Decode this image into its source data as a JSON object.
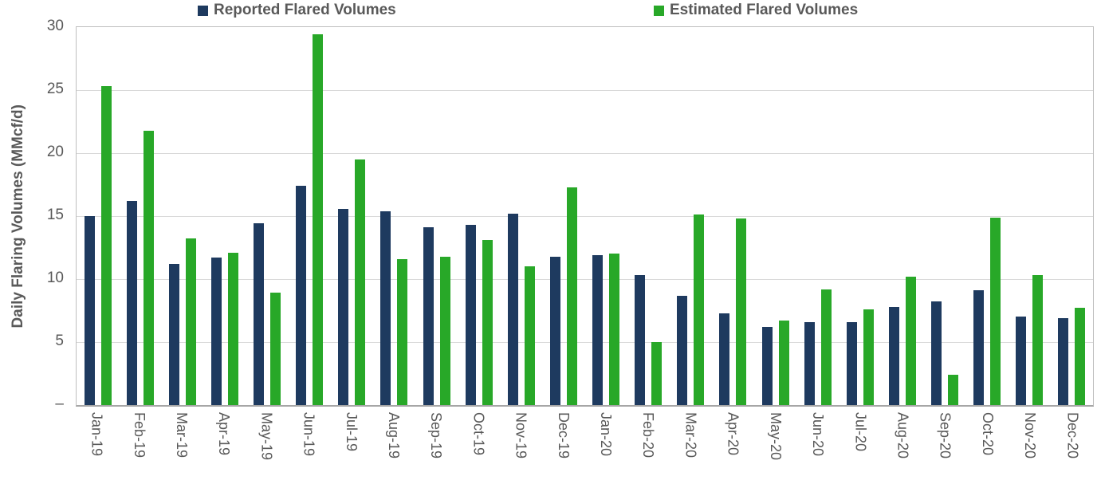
{
  "chart_data": {
    "type": "bar",
    "title": "",
    "xlabel": "",
    "ylabel": "Daily Flaring Volumes (MMcf/d)",
    "ylim": [
      0,
      30
    ],
    "grid": "horizontal",
    "legend_position": "top",
    "y_ticks": [
      {
        "value": 30,
        "label": "30"
      },
      {
        "value": 25,
        "label": "25"
      },
      {
        "value": 20,
        "label": "20"
      },
      {
        "value": 15,
        "label": "15"
      },
      {
        "value": 10,
        "label": "10"
      },
      {
        "value": 5,
        "label": "5"
      },
      {
        "value": 0,
        "label": "–"
      }
    ],
    "categories": [
      "Jan-19",
      "Feb-19",
      "Mar-19",
      "Apr-19",
      "May-19",
      "Jun-19",
      "Jul-19",
      "Aug-19",
      "Sep-19",
      "Oct-19",
      "Nov-19",
      "Dec-19",
      "Jan-20",
      "Feb-20",
      "Mar-20",
      "Apr-20",
      "May-20",
      "Jun-20",
      "Jul-20",
      "Aug-20",
      "Sep-20",
      "Oct-20",
      "Nov-20",
      "Dec-20"
    ],
    "series": [
      {
        "name": "Reported Flared Volumes",
        "color": "#1e3a5f",
        "values": [
          15.0,
          16.2,
          11.2,
          11.7,
          14.4,
          17.4,
          15.6,
          15.4,
          14.1,
          14.3,
          15.2,
          11.8,
          11.9,
          10.3,
          8.7,
          7.3,
          6.2,
          6.6,
          6.6,
          7.8,
          8.2,
          9.1,
          7.0,
          6.9
        ]
      },
      {
        "name": "Estimated Flared Volumes",
        "color": "#28a828",
        "values": [
          25.3,
          21.8,
          13.2,
          12.1,
          8.9,
          29.4,
          19.5,
          11.6,
          11.8,
          13.1,
          11.0,
          17.3,
          12.0,
          5.0,
          15.1,
          14.8,
          6.7,
          9.2,
          7.6,
          10.2,
          2.4,
          14.9,
          10.3,
          7.7
        ]
      }
    ],
    "colors": {
      "axis_text": "#595959",
      "gridline": "#d9d9d9",
      "plot_border": "#bfbfbf",
      "axis_line": "#a6a6a6"
    }
  }
}
